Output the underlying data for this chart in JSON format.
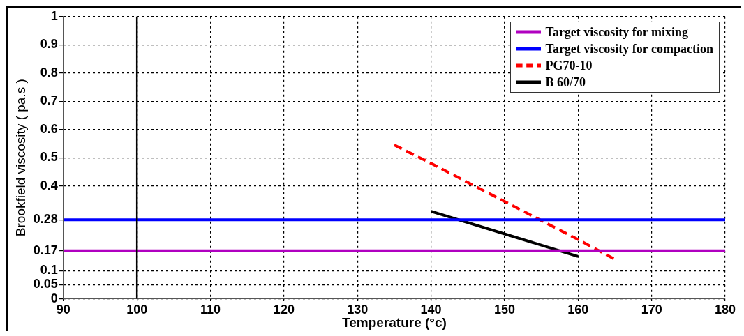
{
  "chart_data": {
    "type": "line",
    "xlabel": "Temperature (°c)",
    "ylabel": "Brookfield viscosity ( pa.s )",
    "xlim": [
      90,
      180
    ],
    "xticks": [
      90,
      100,
      110,
      120,
      130,
      140,
      150,
      160,
      170,
      180
    ],
    "ylim": [
      0,
      1
    ],
    "yticks": [
      0,
      0.05,
      0.1,
      0.17,
      0.28,
      0.4,
      0.5,
      0.6,
      0.7,
      0.8,
      0.9,
      1
    ],
    "grid": true,
    "legend": "top right",
    "marker": "none",
    "ref_lines": [
      {
        "axis": "x",
        "value": 100,
        "color": "#000000"
      }
    ],
    "series": [
      {
        "name": "Target viscosity for mixing",
        "color": "#b000c0",
        "x": [
          90,
          180
        ],
        "values": [
          0.17,
          0.17
        ],
        "line_style": "solid"
      },
      {
        "name": "Target viscosity for compaction",
        "color": "#0000ff",
        "x": [
          90,
          180
        ],
        "values": [
          0.28,
          0.28
        ],
        "line_style": "solid"
      },
      {
        "name": "PG70-10",
        "color": "#ff0000",
        "x": [
          135,
          140,
          150,
          160,
          165
        ],
        "values": [
          0.545,
          0.48,
          0.345,
          0.21,
          0.14
        ],
        "line_style": "dashed"
      },
      {
        "name": "B 60/70",
        "color": "#000000",
        "x": [
          140,
          160
        ],
        "values": [
          0.31,
          0.15
        ],
        "line_style": "solid"
      }
    ]
  }
}
